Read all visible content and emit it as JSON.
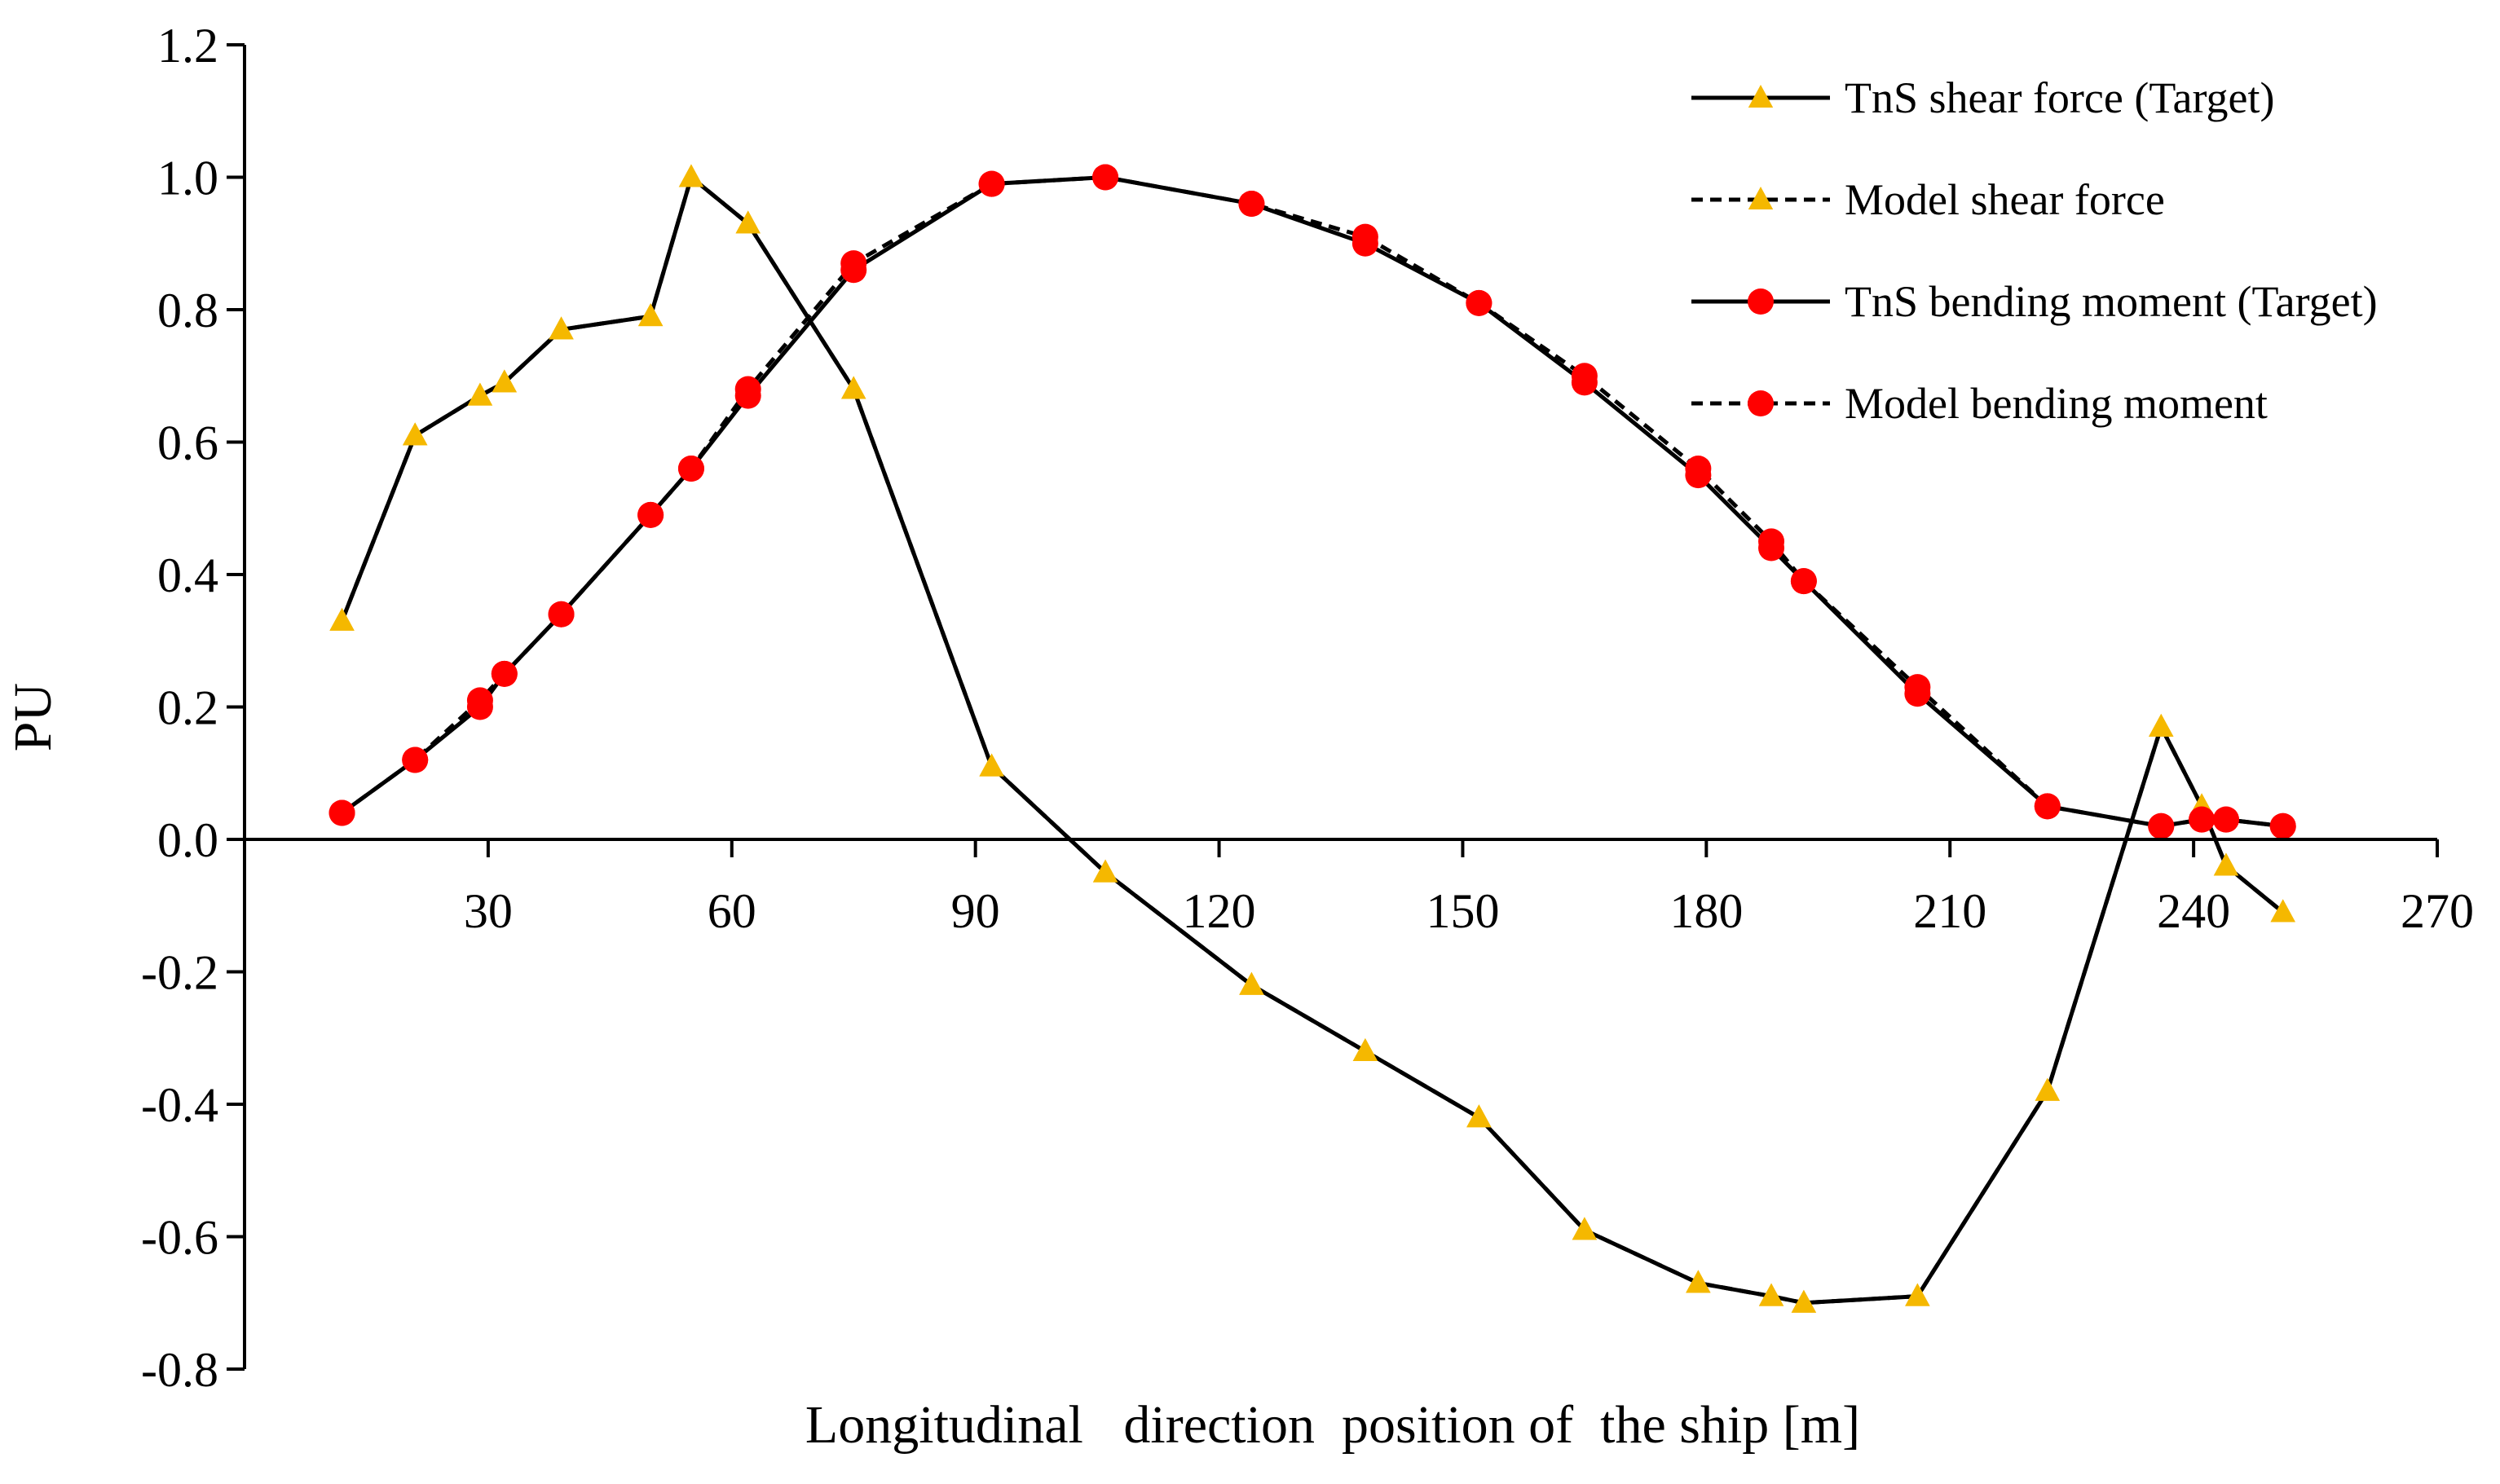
{
  "chart_data": {
    "type": "line",
    "title": "",
    "xlabel": "Longitudinal   direction  position of  the ship [m]",
    "ylabel": "PU",
    "xlim": [
      0,
      270
    ],
    "ylim": [
      -0.8,
      1.2
    ],
    "xticks": [
      30,
      60,
      90,
      120,
      150,
      180,
      210,
      240,
      270
    ],
    "xtick_labels": [
      "30",
      "60",
      "90",
      "120",
      "150",
      "180",
      "210",
      "240",
      "270"
    ],
    "yticks": [
      1.2,
      1.0,
      0.8,
      0.6,
      0.4,
      0.2,
      0.0,
      -0.2,
      -0.4,
      -0.6,
      -0.8
    ],
    "ytick_labels": [
      "1.2",
      "1.0",
      "0.8",
      "0.6",
      "0.4",
      "0.2",
      "0.0",
      "-0.2",
      "-0.4",
      "-0.6",
      "-0.8"
    ],
    "grid": false,
    "legend_position": "top-right",
    "colors": {
      "line": "#000000",
      "triangle_marker": "#F5B800",
      "circle_marker": "#FF0000",
      "axis": "#000000"
    },
    "series": [
      {
        "name": "TnS shear force (Target)",
        "line_style": "solid",
        "marker": "triangle",
        "x": [
          12,
          21,
          29,
          32,
          39,
          50,
          55,
          62,
          75,
          92,
          106,
          124,
          138,
          152,
          165,
          179,
          188,
          192,
          206,
          222,
          236,
          241,
          244,
          251
        ],
        "values": [
          0.33,
          0.61,
          0.67,
          0.69,
          0.77,
          0.79,
          1.0,
          0.93,
          0.68,
          0.11,
          -0.05,
          -0.22,
          -0.32,
          -0.42,
          -0.59,
          -0.67,
          -0.69,
          -0.7,
          -0.69,
          -0.38,
          0.17,
          0.05,
          -0.04,
          -0.11
        ]
      },
      {
        "name": "Model shear force",
        "line_style": "dashed",
        "marker": "triangle",
        "x": [
          12,
          21,
          29,
          32,
          39,
          50,
          55,
          62,
          75,
          92,
          106,
          124,
          138,
          152,
          165,
          179,
          188,
          192,
          206,
          222,
          236,
          241,
          244,
          251
        ],
        "values": [
          0.33,
          0.61,
          0.67,
          0.69,
          0.77,
          0.79,
          1.0,
          0.93,
          0.68,
          0.11,
          -0.05,
          -0.22,
          -0.32,
          -0.42,
          -0.59,
          -0.67,
          -0.69,
          -0.7,
          -0.69,
          -0.38,
          0.17,
          0.05,
          -0.04,
          -0.11
        ]
      },
      {
        "name": "TnS bending moment (Target)",
        "line_style": "solid",
        "marker": "circle",
        "x": [
          12,
          21,
          29,
          32,
          39,
          50,
          55,
          62,
          75,
          92,
          106,
          124,
          138,
          152,
          165,
          179,
          188,
          192,
          206,
          222,
          236,
          241,
          244,
          251
        ],
        "values": [
          0.04,
          0.12,
          0.2,
          0.25,
          0.34,
          0.49,
          0.56,
          0.67,
          0.86,
          0.99,
          1.0,
          0.96,
          0.9,
          0.81,
          0.69,
          0.55,
          0.44,
          0.39,
          0.22,
          0.05,
          0.02,
          0.03,
          0.03,
          0.02
        ]
      },
      {
        "name": "Model bending moment",
        "line_style": "dashed",
        "marker": "circle",
        "x": [
          12,
          21,
          29,
          32,
          39,
          50,
          55,
          62,
          75,
          92,
          106,
          124,
          138,
          152,
          165,
          179,
          188,
          192,
          206,
          222,
          236,
          241,
          244,
          251
        ],
        "values": [
          0.04,
          0.12,
          0.21,
          0.25,
          0.34,
          0.49,
          0.56,
          0.68,
          0.87,
          0.99,
          1.0,
          0.96,
          0.91,
          0.81,
          0.7,
          0.56,
          0.45,
          0.39,
          0.23,
          0.05,
          0.02,
          0.03,
          0.03,
          0.02
        ]
      }
    ]
  }
}
